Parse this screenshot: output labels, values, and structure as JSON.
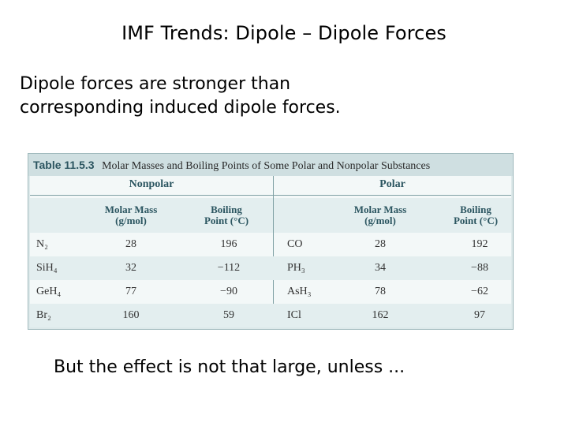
{
  "slide": {
    "title": "IMF Trends: Dipole – Dipole Forces",
    "intro_line1": "Dipole forces are stronger than",
    "intro_line2": "corresponding induced dipole forces.",
    "bottom_note": "But the effect is not that large, unless ..."
  },
  "table": {
    "number": "Table 11.5.3",
    "caption": "Molar Masses and Boiling Points of Some Polar and Nonpolar Substances",
    "groups": {
      "nonpolar": "Nonpolar",
      "polar": "Polar"
    },
    "headers": {
      "molar_mass_1": "Molar Mass",
      "molar_mass_2": "(g/mol)",
      "boiling_1": "Boiling",
      "boiling_2": "Point (°C)"
    },
    "rows": [
      {
        "np": "N₂",
        "np_mass": "28",
        "np_bp": "196",
        "p": "CO",
        "p_mass": "28",
        "p_bp": "192"
      },
      {
        "np": "SiH₄",
        "np_mass": "32",
        "np_bp": "−112",
        "p": "PH₃",
        "p_mass": "34",
        "p_bp": "−88"
      },
      {
        "np": "GeH₄",
        "np_mass": "77",
        "np_bp": "−90",
        "p": "AsH₃",
        "p_mass": "78",
        "p_bp": "−62"
      },
      {
        "np": "Br₂",
        "np_mass": "160",
        "np_bp": "59",
        "p": "ICl",
        "p_mass": "162",
        "p_bp": "97"
      }
    ]
  }
}
